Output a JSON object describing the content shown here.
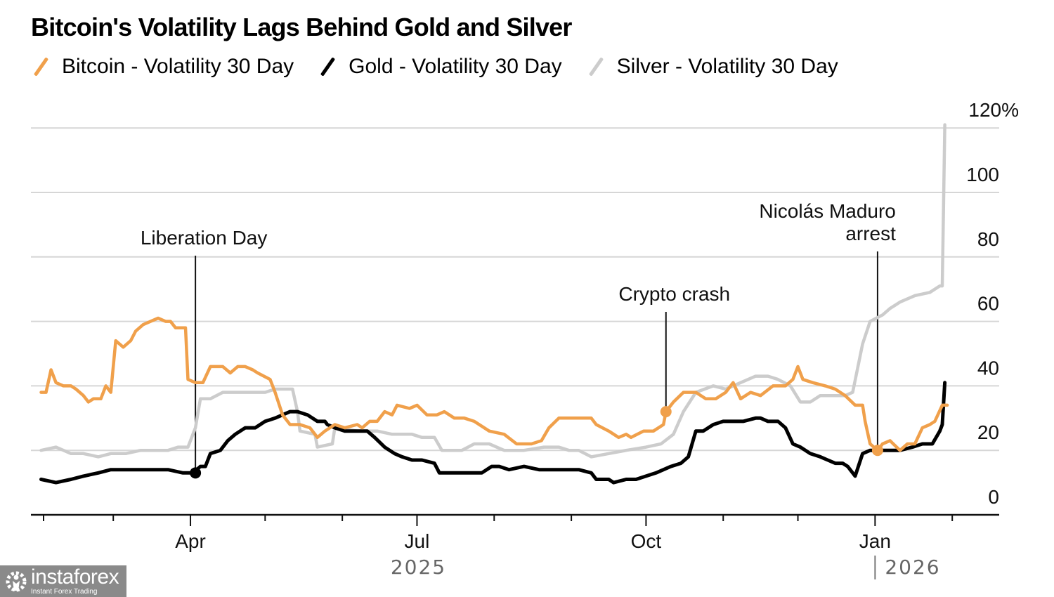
{
  "chart_data": {
    "type": "line",
    "title": "Bitcoin's Volatility Lags Behind Gold and Silver",
    "xlabel": "",
    "ylabel": "",
    "x_unit": "days since 2025-02-01",
    "xlim": [
      -2,
      368
    ],
    "ylim": [
      0,
      120
    ],
    "y_ticks": [
      {
        "value": 0,
        "label": "0"
      },
      {
        "value": 20,
        "label": "20"
      },
      {
        "value": 40,
        "label": "40"
      },
      {
        "value": 60,
        "label": "60"
      },
      {
        "value": 80,
        "label": "80"
      },
      {
        "value": 100,
        "label": "100"
      },
      {
        "value": 120,
        "label": "120%"
      }
    ],
    "x_minor_ticks": [
      0,
      28,
      59,
      89,
      120,
      150,
      181,
      212,
      242,
      273,
      303,
      334,
      365
    ],
    "x_ticks": [
      {
        "value": 59,
        "label": "Apr"
      },
      {
        "value": 150,
        "label": "Jul"
      },
      {
        "value": 242,
        "label": "Oct"
      },
      {
        "value": 334,
        "label": "Jan"
      }
    ],
    "year_labels": [
      {
        "value": 150,
        "label": "2025",
        "divider": false
      },
      {
        "value": 334,
        "label": "2026",
        "divider": true
      }
    ],
    "grid": true,
    "legend_position": "top-left",
    "series": [
      {
        "name": "Bitcoin - Volatility 30 Day",
        "color": "#f0a04b",
        "points": [
          [
            -1,
            38
          ],
          [
            1,
            38
          ],
          [
            3,
            45
          ],
          [
            5,
            41
          ],
          [
            8,
            40
          ],
          [
            11,
            40
          ],
          [
            13,
            39
          ],
          [
            16,
            37
          ],
          [
            18,
            35
          ],
          [
            20,
            36
          ],
          [
            23,
            36
          ],
          [
            25,
            40
          ],
          [
            27,
            38
          ],
          [
            29,
            54
          ],
          [
            32,
            52
          ],
          [
            35,
            54
          ],
          [
            37,
            57
          ],
          [
            40,
            59
          ],
          [
            43,
            60
          ],
          [
            46,
            61
          ],
          [
            49,
            60
          ],
          [
            51,
            60
          ],
          [
            53,
            58
          ],
          [
            55,
            58
          ],
          [
            57,
            58
          ],
          [
            58,
            42
          ],
          [
            61,
            41
          ],
          [
            64,
            41
          ],
          [
            67,
            46
          ],
          [
            70,
            46
          ],
          [
            72,
            46
          ],
          [
            75,
            44
          ],
          [
            78,
            46
          ],
          [
            81,
            46
          ],
          [
            84,
            45
          ],
          [
            86,
            44
          ],
          [
            91,
            42
          ],
          [
            93,
            38
          ],
          [
            96,
            31
          ],
          [
            99,
            28
          ],
          [
            103,
            28
          ],
          [
            107,
            27
          ],
          [
            110,
            24
          ],
          [
            113,
            26
          ],
          [
            117,
            28
          ],
          [
            121,
            27
          ],
          [
            126,
            28
          ],
          [
            128,
            27
          ],
          [
            131,
            29
          ],
          [
            134,
            29
          ],
          [
            137,
            32
          ],
          [
            140,
            31
          ],
          [
            142,
            34
          ],
          [
            147,
            33
          ],
          [
            150,
            34
          ],
          [
            154,
            31
          ],
          [
            158,
            31
          ],
          [
            161,
            32
          ],
          [
            165,
            30
          ],
          [
            169,
            30
          ],
          [
            173,
            29
          ],
          [
            179,
            26
          ],
          [
            185,
            25
          ],
          [
            190,
            22
          ],
          [
            196,
            22
          ],
          [
            200,
            23
          ],
          [
            203,
            27
          ],
          [
            207,
            30
          ],
          [
            211,
            30
          ],
          [
            215,
            30
          ],
          [
            220,
            30
          ],
          [
            222,
            28
          ],
          [
            227,
            26
          ],
          [
            231,
            24
          ],
          [
            234,
            25
          ],
          [
            236,
            24
          ],
          [
            241,
            26
          ],
          [
            245,
            26
          ],
          [
            249,
            28
          ],
          [
            250,
            32
          ],
          [
            253,
            35
          ],
          [
            257,
            38
          ],
          [
            262,
            38
          ],
          [
            266,
            36
          ],
          [
            270,
            36
          ],
          [
            274,
            38
          ],
          [
            277,
            41
          ],
          [
            280,
            36
          ],
          [
            284,
            38
          ],
          [
            288,
            37
          ],
          [
            293,
            40
          ],
          [
            295,
            40
          ],
          [
            298,
            40
          ],
          [
            301,
            42
          ],
          [
            303,
            46
          ],
          [
            305,
            42
          ],
          [
            309,
            41
          ],
          [
            314,
            40
          ],
          [
            318,
            39
          ],
          [
            322,
            37
          ],
          [
            326,
            34
          ],
          [
            329,
            34
          ],
          [
            330,
            29
          ],
          [
            332,
            22
          ],
          [
            335,
            20
          ],
          [
            337,
            22
          ],
          [
            340,
            23
          ],
          [
            344,
            20
          ],
          [
            347,
            22
          ],
          [
            350,
            22
          ],
          [
            353,
            27
          ],
          [
            356,
            28
          ],
          [
            358,
            29
          ],
          [
            361,
            34
          ],
          [
            363,
            34
          ]
        ]
      },
      {
        "name": "Gold - Volatility 30 Day",
        "color": "#000000",
        "points": [
          [
            -1,
            11
          ],
          [
            5,
            10
          ],
          [
            11,
            11
          ],
          [
            16,
            12
          ],
          [
            22,
            13
          ],
          [
            27,
            14
          ],
          [
            33,
            14
          ],
          [
            39,
            14
          ],
          [
            44,
            14
          ],
          [
            50,
            14
          ],
          [
            56,
            13
          ],
          [
            60,
            13
          ],
          [
            63,
            15
          ],
          [
            65,
            15
          ],
          [
            67,
            19
          ],
          [
            71,
            20
          ],
          [
            74,
            23
          ],
          [
            77,
            25
          ],
          [
            81,
            27
          ],
          [
            85,
            27
          ],
          [
            89,
            29
          ],
          [
            93,
            30
          ],
          [
            96,
            31
          ],
          [
            99,
            32
          ],
          [
            102,
            32
          ],
          [
            106,
            31
          ],
          [
            110,
            29
          ],
          [
            113,
            29
          ],
          [
            114,
            28
          ],
          [
            117,
            27
          ],
          [
            121,
            26
          ],
          [
            126,
            26
          ],
          [
            130,
            26
          ],
          [
            133,
            24
          ],
          [
            137,
            21
          ],
          [
            141,
            19
          ],
          [
            144,
            18
          ],
          [
            148,
            17
          ],
          [
            152,
            17
          ],
          [
            157,
            16
          ],
          [
            159,
            13
          ],
          [
            164,
            13
          ],
          [
            168,
            13
          ],
          [
            172,
            13
          ],
          [
            176,
            13
          ],
          [
            180,
            15
          ],
          [
            183,
            15
          ],
          [
            187,
            14
          ],
          [
            193,
            15
          ],
          [
            199,
            14
          ],
          [
            204,
            14
          ],
          [
            210,
            14
          ],
          [
            215,
            14
          ],
          [
            220,
            13
          ],
          [
            222,
            11
          ],
          [
            227,
            11
          ],
          [
            229,
            10
          ],
          [
            234,
            11
          ],
          [
            238,
            11
          ],
          [
            242,
            12
          ],
          [
            246,
            13
          ],
          [
            249,
            14
          ],
          [
            252,
            15
          ],
          [
            256,
            16
          ],
          [
            259,
            18
          ],
          [
            262,
            26
          ],
          [
            265,
            26
          ],
          [
            269,
            28
          ],
          [
            273,
            29
          ],
          [
            277,
            29
          ],
          [
            281,
            29
          ],
          [
            286,
            30
          ],
          [
            288,
            30
          ],
          [
            291,
            29
          ],
          [
            295,
            29
          ],
          [
            298,
            27
          ],
          [
            301,
            22
          ],
          [
            304,
            21
          ],
          [
            308,
            19
          ],
          [
            312,
            18
          ],
          [
            315,
            17
          ],
          [
            318,
            16
          ],
          [
            321,
            16
          ],
          [
            323,
            15
          ],
          [
            326,
            12
          ],
          [
            329,
            19
          ],
          [
            332,
            20
          ],
          [
            336,
            20
          ],
          [
            340,
            20
          ],
          [
            344,
            20
          ],
          [
            349,
            21
          ],
          [
            353,
            22
          ],
          [
            357,
            22
          ],
          [
            360,
            26
          ],
          [
            361,
            28
          ],
          [
            362,
            41
          ]
        ]
      },
      {
        "name": "Silver - Volatility 30 Day",
        "color": "#cccccc",
        "points": [
          [
            -1,
            20
          ],
          [
            5,
            21
          ],
          [
            11,
            19
          ],
          [
            16,
            19
          ],
          [
            22,
            18
          ],
          [
            27,
            19
          ],
          [
            33,
            19
          ],
          [
            39,
            20
          ],
          [
            44,
            20
          ],
          [
            50,
            20
          ],
          [
            54,
            21
          ],
          [
            58,
            21
          ],
          [
            61,
            27
          ],
          [
            63,
            36
          ],
          [
            67,
            36
          ],
          [
            72,
            38
          ],
          [
            78,
            38
          ],
          [
            84,
            38
          ],
          [
            89,
            38
          ],
          [
            93,
            39
          ],
          [
            100,
            39
          ],
          [
            102,
            32
          ],
          [
            103,
            26
          ],
          [
            109,
            25
          ],
          [
            110,
            21
          ],
          [
            116,
            22
          ],
          [
            117,
            27
          ],
          [
            126,
            26
          ],
          [
            134,
            26
          ],
          [
            140,
            25
          ],
          [
            144,
            25
          ],
          [
            148,
            25
          ],
          [
            152,
            24
          ],
          [
            157,
            24
          ],
          [
            160,
            20
          ],
          [
            164,
            20
          ],
          [
            168,
            20
          ],
          [
            173,
            22
          ],
          [
            179,
            22
          ],
          [
            185,
            20
          ],
          [
            193,
            20
          ],
          [
            201,
            21
          ],
          [
            207,
            21
          ],
          [
            211,
            20
          ],
          [
            215,
            20
          ],
          [
            220,
            18
          ],
          [
            227,
            19
          ],
          [
            234,
            20
          ],
          [
            242,
            21
          ],
          [
            248,
            22
          ],
          [
            253,
            25
          ],
          [
            257,
            32
          ],
          [
            262,
            38
          ],
          [
            269,
            40
          ],
          [
            274,
            39
          ],
          [
            280,
            41
          ],
          [
            286,
            43
          ],
          [
            291,
            43
          ],
          [
            295,
            42
          ],
          [
            300,
            40
          ],
          [
            304,
            35
          ],
          [
            308,
            35
          ],
          [
            312,
            37
          ],
          [
            318,
            37
          ],
          [
            322,
            37
          ],
          [
            325,
            38
          ],
          [
            329,
            53
          ],
          [
            332,
            60
          ],
          [
            337,
            62
          ],
          [
            340,
            64
          ],
          [
            344,
            66
          ],
          [
            350,
            68
          ],
          [
            356,
            69
          ],
          [
            360,
            71
          ],
          [
            361,
            71
          ],
          [
            362,
            121
          ]
        ]
      }
    ],
    "annotations": [
      {
        "label": [
          "Liberation Day"
        ],
        "x": 61,
        "y": 13,
        "marker_series": "Gold - Volatility 30 Day",
        "align": "center"
      },
      {
        "label": [
          "Crypto crash"
        ],
        "x": 250,
        "y": 32,
        "marker_series": "Bitcoin - Volatility 30 Day",
        "align": "center"
      },
      {
        "label": [
          "Nicolás Maduro",
          "arrest"
        ],
        "x": 335,
        "y": 20,
        "marker_series": "Bitcoin - Volatility 30 Day",
        "align": "right"
      }
    ]
  },
  "watermark": {
    "name": "instaforex",
    "tagline": "Instant Forex Trading",
    "icon": "gear-person-icon"
  }
}
